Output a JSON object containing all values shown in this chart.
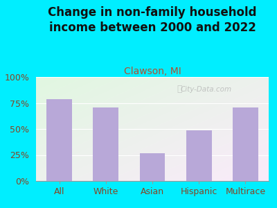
{
  "categories": [
    "All",
    "White",
    "Asian",
    "Hispanic",
    "Multirace"
  ],
  "values": [
    79,
    71,
    27,
    49,
    71
  ],
  "bar_color": "#b8a8d8",
  "title": "Change in non-family household\nincome between 2000 and 2022",
  "subtitle": "Clawson, MI",
  "subtitle_color": "#b05030",
  "title_color": "#111111",
  "background_color": "#00eeff",
  "ytick_labels": [
    "0%",
    "25%",
    "50%",
    "75%",
    "100%"
  ],
  "ytick_values": [
    0,
    25,
    50,
    75,
    100
  ],
  "ylim": [
    0,
    100
  ],
  "tick_color": "#884422",
  "watermark": "City-Data.com",
  "title_fontsize": 12,
  "subtitle_fontsize": 10,
  "tick_fontsize": 9,
  "bar_width": 0.55
}
